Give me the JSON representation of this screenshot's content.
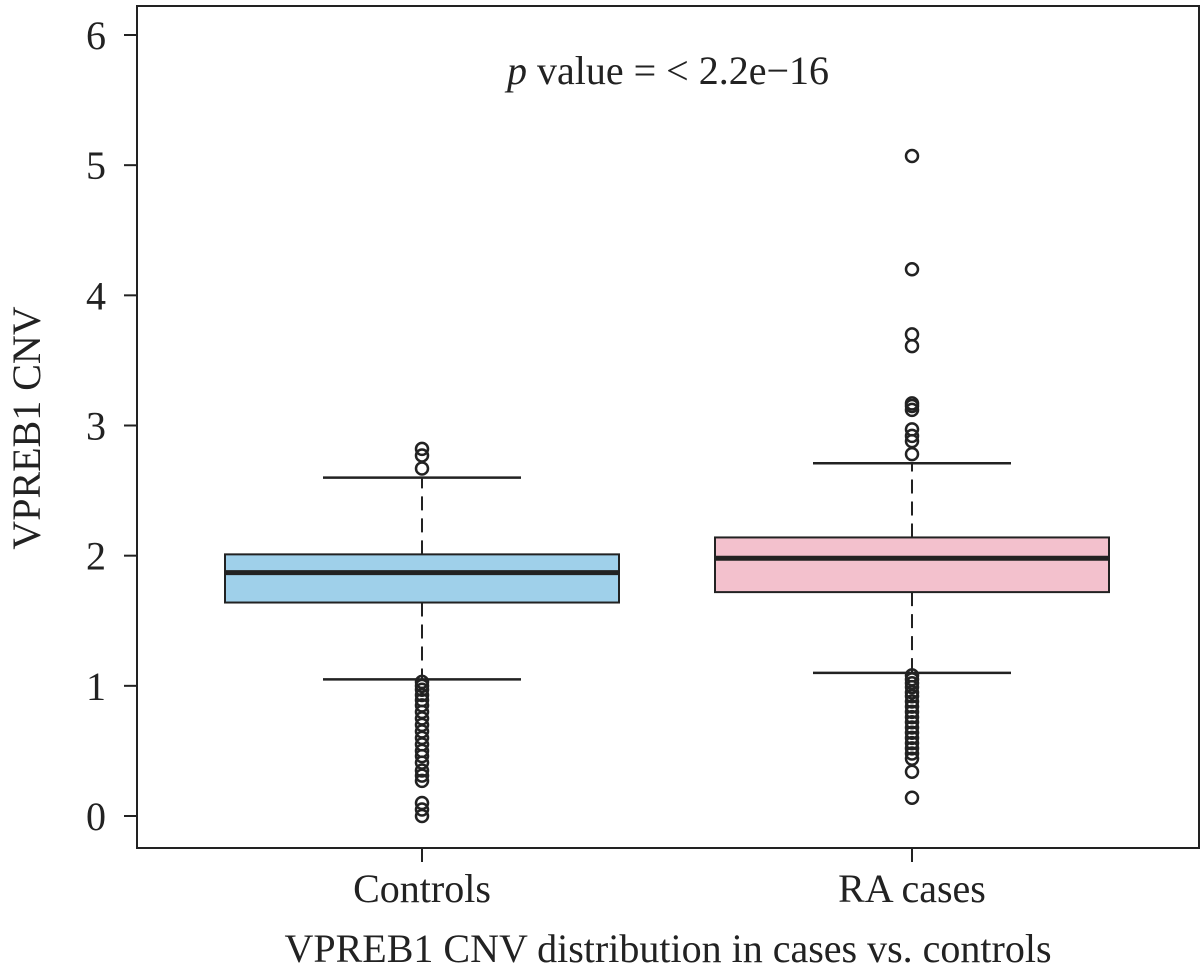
{
  "chart_data": {
    "type": "box",
    "title": "",
    "annotation_italic": "p",
    "annotation": " value = < 2.2e−16",
    "xlabel": "VPREB1 CNV distribution in cases vs. controls",
    "ylabel": "VPREB1 CNV",
    "ylim": [
      0,
      6
    ],
    "yticks": [
      "0",
      "1",
      "2",
      "3",
      "4",
      "5",
      "6"
    ],
    "grid": false,
    "categories": [
      "Controls",
      "RA cases"
    ],
    "series": [
      {
        "category": "Controls",
        "color": "#9fd0ea",
        "whisker_low": 1.05,
        "q1": 1.64,
        "median": 1.87,
        "q3": 2.01,
        "whisker_high": 2.6,
        "outliers": [
          2.82,
          2.77,
          2.67,
          1.03,
          1.0,
          0.97,
          0.93,
          0.89,
          0.85,
          0.8,
          0.75,
          0.7,
          0.65,
          0.6,
          0.55,
          0.5,
          0.46,
          0.41,
          0.35,
          0.31,
          0.27,
          0.1,
          0.05,
          0.0
        ]
      },
      {
        "category": "RA cases",
        "color": "#f3c1cd",
        "whisker_low": 1.1,
        "q1": 1.72,
        "median": 1.98,
        "q3": 2.14,
        "whisker_high": 2.71,
        "outliers": [
          5.07,
          4.2,
          3.7,
          3.61,
          3.17,
          3.15,
          3.12,
          2.97,
          2.92,
          2.88,
          2.78,
          1.08,
          1.05,
          1.02,
          0.99,
          0.95,
          0.92,
          0.88,
          0.84,
          0.8,
          0.76,
          0.72,
          0.68,
          0.64,
          0.6,
          0.56,
          0.52,
          0.48,
          0.44,
          0.34,
          0.14
        ]
      }
    ]
  }
}
